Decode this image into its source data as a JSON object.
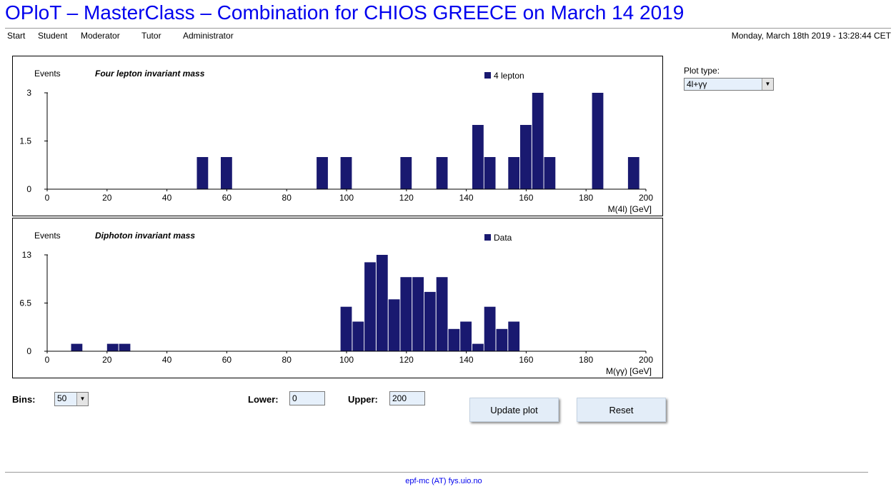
{
  "header": {
    "title": "OPloT – MasterClass – Combination for CHIOS GREECE on March 14  2019"
  },
  "nav": {
    "items": [
      "Start",
      "Student",
      "Moderator",
      "Tutor",
      "Administrator"
    ]
  },
  "datetime": "Monday, March 18th 2019 - 13:28:44 CET",
  "colors": {
    "bar": "#191970",
    "link": "#0000ee"
  },
  "chart_data": [
    {
      "type": "bar",
      "title": "Four lepton invariant mass",
      "ylabel": "Events",
      "xlabel": "M(4l) [GeV]",
      "legend": "4 lepton",
      "legend_position": "top-right",
      "xlim": [
        0,
        200
      ],
      "ylim": [
        0,
        3
      ],
      "xticks": [
        0,
        20,
        40,
        60,
        80,
        100,
        120,
        140,
        160,
        180,
        200
      ],
      "yticks": [
        "0",
        "1.5",
        "3"
      ],
      "bin_width": 4,
      "x": [
        50,
        58,
        90,
        98,
        118,
        130,
        142,
        146,
        154,
        158,
        162,
        166,
        182,
        194
      ],
      "values": [
        1,
        1,
        1,
        1,
        1,
        1,
        2,
        1,
        1,
        2,
        3,
        1,
        3,
        1
      ]
    },
    {
      "type": "bar",
      "title": "Diphoton invariant mass",
      "ylabel": "Events",
      "xlabel": "M(γγ) [GeV]",
      "legend": "Data",
      "legend_position": "top-right",
      "xlim": [
        0,
        200
      ],
      "ylim": [
        0,
        13
      ],
      "xticks": [
        0,
        20,
        40,
        60,
        80,
        100,
        120,
        140,
        160,
        180,
        200
      ],
      "yticks": [
        "0",
        "6.5",
        "13"
      ],
      "bin_width": 4,
      "x": [
        8,
        20,
        24,
        98,
        102,
        106,
        110,
        114,
        118,
        122,
        126,
        130,
        134,
        138,
        142,
        146,
        150,
        154
      ],
      "values": [
        1,
        1,
        1,
        6,
        4,
        12,
        13,
        7,
        10,
        10,
        8,
        10,
        3,
        4,
        1,
        6,
        3,
        4
      ]
    }
  ],
  "controls": {
    "plot_type_label": "Plot type:",
    "plot_type_value": "4l+γγ",
    "bins_label": "Bins:",
    "bins_value": "50",
    "lower_label": "Lower:",
    "lower_value": "0",
    "upper_label": "Upper:",
    "upper_value": "200",
    "update_button": "Update plot",
    "reset_button": "Reset"
  },
  "footer": {
    "email": "epf-mc (AT) fys.uio.no"
  }
}
